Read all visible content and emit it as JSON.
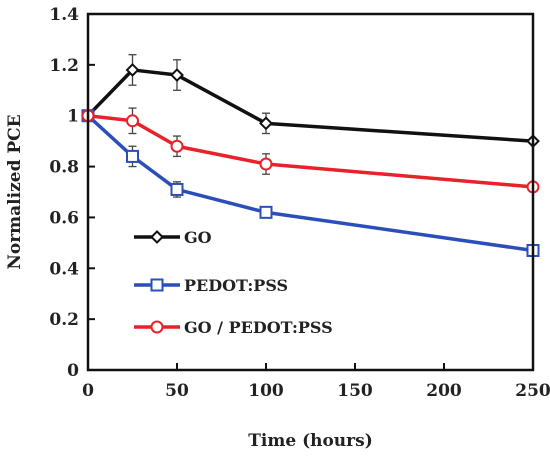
{
  "chart_data": {
    "type": "line",
    "title": "",
    "xlabel": "Time (hours)",
    "ylabel": "Normalized PCE",
    "xlim": [
      0,
      250
    ],
    "ylim": [
      0,
      1.4
    ],
    "x_ticks": [
      0,
      50,
      100,
      150,
      200,
      250
    ],
    "x_tick_labels": [
      "0",
      "50",
      "100",
      "150",
      "200",
      "250"
    ],
    "y_ticks": [
      0,
      0.2,
      0.4,
      0.6,
      0.8,
      1,
      1.2,
      1.4
    ],
    "y_tick_labels": [
      "0",
      "0.2",
      "0.4",
      "0.6",
      "0.8",
      "1",
      "1.2",
      "1.4"
    ],
    "grid": false,
    "legend_position": "lower-left",
    "series": [
      {
        "name": "GO",
        "color": "#111111",
        "marker": "diamond",
        "x": [
          0,
          25,
          50,
          100,
          250
        ],
        "y": [
          1.0,
          1.18,
          1.16,
          0.97,
          0.9
        ],
        "error": [
          0,
          0.06,
          0.06,
          0.04,
          0
        ]
      },
      {
        "name": "PEDOT:PSS",
        "color": "#2a4fb8",
        "marker": "square",
        "x": [
          0,
          25,
          50,
          100,
          250
        ],
        "y": [
          1.0,
          0.84,
          0.71,
          0.62,
          0.47
        ],
        "error": [
          0,
          0.04,
          0.03,
          0.02,
          0
        ]
      },
      {
        "name": "GO / PEDOT:PSS",
        "color": "#e8222a",
        "marker": "circle",
        "x": [
          0,
          25,
          50,
          100,
          250
        ],
        "y": [
          1.0,
          0.98,
          0.88,
          0.81,
          0.72
        ],
        "error": [
          0,
          0.05,
          0.04,
          0.04,
          0
        ]
      }
    ]
  }
}
